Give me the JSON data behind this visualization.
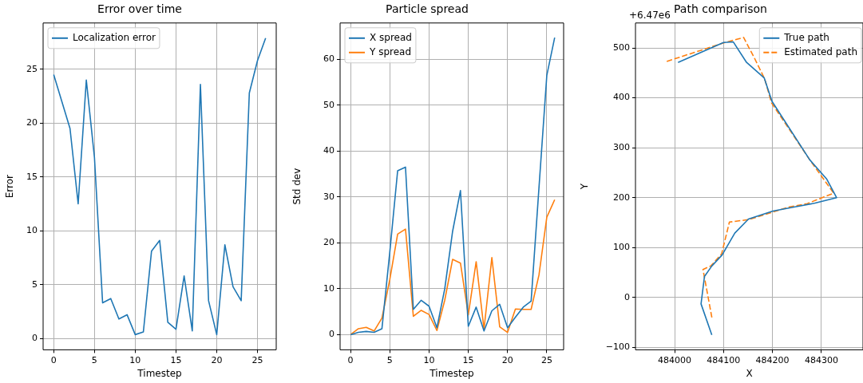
{
  "chart_data": [
    {
      "type": "line",
      "title": "Error over time",
      "xlabel": "Timestep",
      "ylabel": "Error",
      "legend": "top left",
      "grid": true,
      "x": [
        0,
        1,
        2,
        3,
        4,
        5,
        6,
        7,
        8,
        9,
        10,
        11,
        12,
        13,
        14,
        15,
        16,
        17,
        18,
        19,
        20,
        21,
        22,
        23,
        24,
        25,
        26
      ],
      "series": [
        {
          "name": "Localization error",
          "color": "#1f77b4",
          "values": [
            24.5,
            22,
            19.5,
            12.5,
            24,
            16.8,
            3.3,
            3.7,
            1.8,
            2.2,
            0.35,
            0.6,
            8.1,
            9.1,
            1.5,
            0.85,
            5.8,
            0.7,
            23.6,
            3.5,
            0.35,
            8.7,
            4.8,
            3.5,
            22.8,
            25.8,
            27.9
          ]
        }
      ],
      "xlim": [
        -1.3,
        27.3
      ],
      "xticks": [
        0,
        5,
        10,
        15,
        20,
        25
      ],
      "ylim": [
        -1.06,
        29.3
      ],
      "yticks": [
        0,
        5,
        10,
        15,
        20,
        25
      ]
    },
    {
      "type": "line",
      "title": "Particle spread",
      "xlabel": "Timestep",
      "ylabel": "Std dev",
      "legend": "top left",
      "grid": true,
      "x": [
        0,
        1,
        2,
        3,
        4,
        5,
        6,
        7,
        8,
        9,
        10,
        11,
        12,
        13,
        14,
        15,
        16,
        17,
        18,
        19,
        20,
        21,
        22,
        23,
        24,
        25,
        26
      ],
      "series": [
        {
          "name": "X spread",
          "color": "#1f77b4",
          "values": [
            0,
            0.5,
            0.7,
            0.5,
            1.3,
            18,
            35.7,
            36.5,
            5.5,
            7.5,
            6.2,
            1.5,
            10,
            22.5,
            31.4,
            1.8,
            6,
            0.8,
            5.2,
            6.6,
            1.5,
            3.8,
            6,
            7.3,
            32,
            56.5,
            64.7
          ]
        },
        {
          "name": "Y spread",
          "color": "#ff7f0e",
          "values": [
            0,
            1.3,
            1.6,
            0.8,
            3.6,
            12,
            21.9,
            23,
            4,
            5.3,
            4.4,
            0.9,
            7.5,
            16.4,
            15.6,
            4.3,
            15.9,
            1.2,
            16.8,
            1.7,
            0.5,
            5.6,
            5.5,
            5.5,
            13,
            25.6,
            29.4
          ]
        }
      ],
      "xlim": [
        -1.33,
        27.14
      ],
      "xticks": [
        0,
        5,
        10,
        15,
        20,
        25
      ],
      "ylim": [
        -3.3,
        67.9
      ],
      "yticks": [
        0,
        10,
        20,
        30,
        40,
        50,
        60
      ]
    },
    {
      "type": "line",
      "title": "Path comparison",
      "xlabel": "X",
      "ylabel": "Y",
      "legend": "top right",
      "grid": true,
      "annotations": [
        "+6.47e6"
      ],
      "series": [
        {
          "name": "True path",
          "color": "#1f77b4",
          "line_style": "solid",
          "x": [
            484007,
            484100,
            484120,
            484147,
            484183,
            484199,
            484276,
            484311,
            484331,
            484287,
            484244,
            484201,
            484151,
            484123,
            484097,
            484076,
            484061,
            484054,
            484076
          ],
          "values": [
            471,
            511,
            512,
            471,
            440,
            393,
            276,
            237,
            200,
            189,
            181,
            173,
            157,
            129,
            85,
            63,
            42,
            -13,
            -75
          ]
        },
        {
          "name": "Estimated path",
          "color": "#ff7f0e",
          "line_style": "dashed",
          "x": [
            483984,
            484100,
            484141,
            484163,
            484184,
            484198,
            484276,
            484325,
            484271,
            484233,
            484152,
            484112,
            484096,
            484074,
            484058,
            484077
          ],
          "values": [
            473,
            510,
            521,
            480,
            438,
            390,
            276,
            209,
            188,
            181,
            156,
            151,
            87,
            63,
            56,
            -45
          ]
        }
      ],
      "xlim": [
        483920,
        484385
      ],
      "xticks": [
        484000,
        484100,
        484200,
        484300
      ],
      "ylim": [
        -105,
        550
      ],
      "yticks": [
        -100,
        0,
        100,
        200,
        300,
        400,
        500
      ]
    }
  ]
}
